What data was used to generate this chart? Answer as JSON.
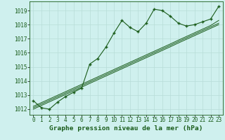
{
  "title": "Graphe pression niveau de la mer (hPa)",
  "bg_color": "#cff0ee",
  "grid_color": "#b8ddd8",
  "line_color": "#1a5c1a",
  "x_values": [
    0,
    1,
    2,
    3,
    4,
    5,
    6,
    7,
    8,
    9,
    10,
    11,
    12,
    13,
    14,
    15,
    16,
    17,
    18,
    19,
    20,
    21,
    22,
    23
  ],
  "y_main": [
    1012.6,
    1012.1,
    1012.0,
    1012.5,
    1012.9,
    1013.2,
    1013.5,
    1015.2,
    1015.6,
    1016.4,
    1017.4,
    1018.3,
    1017.8,
    1017.5,
    1018.1,
    1019.1,
    1019.0,
    1018.6,
    1018.1,
    1017.9,
    1018.0,
    1018.2,
    1018.4,
    1019.3
  ],
  "y_linear1": [
    1012.0,
    1012.26,
    1012.52,
    1012.78,
    1013.04,
    1013.3,
    1013.56,
    1013.83,
    1014.09,
    1014.35,
    1014.61,
    1014.87,
    1015.13,
    1015.39,
    1015.65,
    1015.91,
    1016.17,
    1016.43,
    1016.7,
    1016.96,
    1017.22,
    1017.48,
    1017.74,
    1018.0
  ],
  "y_linear2": [
    1012.1,
    1012.36,
    1012.62,
    1012.88,
    1013.14,
    1013.4,
    1013.66,
    1013.93,
    1014.19,
    1014.45,
    1014.71,
    1014.97,
    1015.23,
    1015.49,
    1015.75,
    1016.01,
    1016.27,
    1016.53,
    1016.8,
    1017.06,
    1017.32,
    1017.58,
    1017.84,
    1018.1
  ],
  "y_linear3": [
    1012.2,
    1012.46,
    1012.72,
    1012.98,
    1013.24,
    1013.5,
    1013.76,
    1014.03,
    1014.29,
    1014.55,
    1014.81,
    1015.07,
    1015.33,
    1015.59,
    1015.85,
    1016.11,
    1016.37,
    1016.63,
    1016.9,
    1017.16,
    1017.42,
    1017.68,
    1017.94,
    1018.3
  ],
  "ylim": [
    1011.6,
    1019.65
  ],
  "yticks": [
    1012,
    1013,
    1014,
    1015,
    1016,
    1017,
    1018,
    1019
  ],
  "tick_fontsize": 5.5,
  "xlabel_fontsize": 6.8
}
